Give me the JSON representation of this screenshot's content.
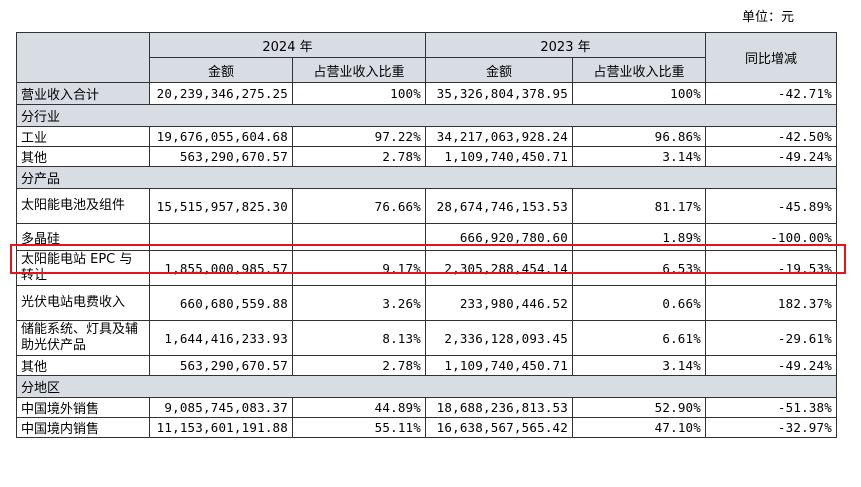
{
  "unit_label": "单位：元",
  "header": {
    "year_2024": "2024 年",
    "year_2023": "2023 年",
    "amount": "金额",
    "ratio": "占营业收入比重",
    "yoy": "同比增减"
  },
  "total": {
    "label": "营业收入合计",
    "a24": "20,239,346,275.25",
    "r24": "100%",
    "a23": "35,326,804,378.95",
    "r23": "100%",
    "yoy": "-42.71%"
  },
  "sections": {
    "industry": "分行业",
    "product": "分产品",
    "region": "分地区"
  },
  "industry_rows": [
    {
      "label": "工业",
      "a24": "19,676,055,604.68",
      "r24": "97.22%",
      "a23": "34,217,063,928.24",
      "r23": "96.86%",
      "yoy": "-42.50%"
    },
    {
      "label": "其他",
      "a24": "563,290,670.57",
      "r24": "2.78%",
      "a23": "1,109,740,450.71",
      "r23": "3.14%",
      "yoy": "-49.24%"
    }
  ],
  "product_rows": [
    {
      "label": "太阳能电池及组件",
      "a24": "15,515,957,825.30",
      "r24": "76.66%",
      "a23": "28,674,746,153.53",
      "r23": "81.17%",
      "yoy": "-45.89%"
    },
    {
      "label": "多晶硅",
      "a24": "",
      "r24": "",
      "a23": "666,920,780.60",
      "r23": "1.89%",
      "yoy": "-100.00%"
    },
    {
      "label": "太阳能电站 EPC 与转让",
      "a24": "1,855,000,985.57",
      "r24": "9.17%",
      "a23": "2,305,288,454.14",
      "r23": "6.53%",
      "yoy": "-19.53%"
    },
    {
      "label": "光伏电站电费收入",
      "a24": "660,680,559.88",
      "r24": "3.26%",
      "a23": "233,980,446.52",
      "r23": "0.66%",
      "yoy": "182.37%"
    },
    {
      "label": "储能系统、灯具及辅助光伏产品",
      "a24": "1,644,416,233.93",
      "r24": "8.13%",
      "a23": "2,336,128,093.45",
      "r23": "6.61%",
      "yoy": "-29.61%"
    },
    {
      "label": "其他",
      "a24": "563,290,670.57",
      "r24": "2.78%",
      "a23": "1,109,740,450.71",
      "r23": "3.14%",
      "yoy": "-49.24%"
    }
  ],
  "region_rows": [
    {
      "label": "中国境外销售",
      "a24": "9,085,745,083.37",
      "r24": "44.89%",
      "a23": "18,688,236,813.53",
      "r23": "52.90%",
      "yoy": "-51.38%"
    },
    {
      "label": "中国境内销售",
      "a24": "11,153,601,191.88",
      "r24": "55.11%",
      "a23": "16,638,567,565.42",
      "r23": "47.10%",
      "yoy": "-32.97%"
    }
  ],
  "highlight_color": "#e3151c"
}
